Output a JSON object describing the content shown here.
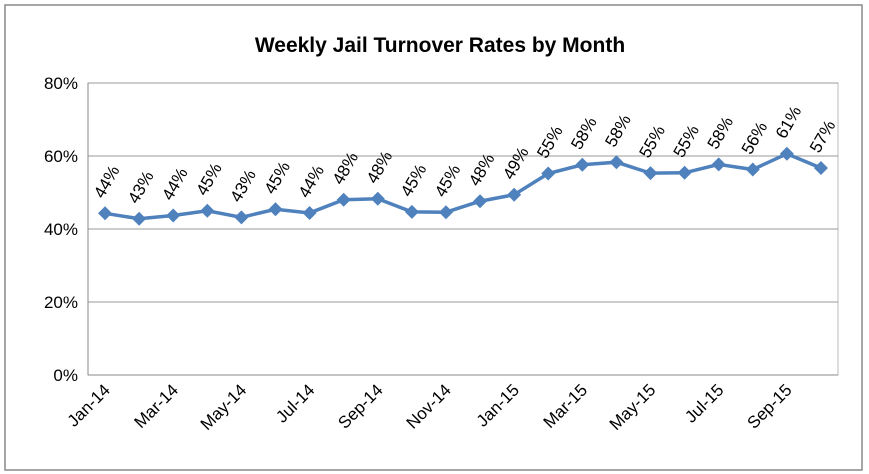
{
  "chart_data": {
    "type": "line",
    "title": "Weekly Jail Turnover Rates by Month",
    "categories": [
      "Jan-14",
      null,
      "Mar-14",
      null,
      "May-14",
      null,
      "Jul-14",
      null,
      "Sep-14",
      null,
      "Nov-14",
      null,
      "Jan-15",
      null,
      "Mar-15",
      null,
      "May-15",
      null,
      "Jul-15",
      null,
      "Sep-15",
      null
    ],
    "series": [
      {
        "name": "Turnover rate",
        "color": "#4f81bd",
        "values": [
          44.3,
          42.8,
          43.7,
          45.0,
          43.2,
          45.4,
          44.4,
          48.0,
          48.3,
          44.7,
          44.6,
          47.6,
          49.4,
          55.2,
          57.6,
          58.3,
          55.3,
          55.4,
          57.7,
          56.3,
          60.6,
          56.7
        ],
        "value_labels": [
          "44%",
          "43%",
          "44%",
          "45%",
          "43%",
          "45%",
          "44%",
          "48%",
          "48%",
          "45%",
          "45%",
          "48%",
          "49%",
          "55%",
          "58%",
          "58%",
          "55%",
          "55%",
          "58%",
          "56%",
          "61%",
          "57%"
        ]
      }
    ],
    "ylim": [
      0,
      80
    ],
    "yticks": [
      {
        "value": 0,
        "label": "0%"
      },
      {
        "value": 20,
        "label": "20%"
      },
      {
        "value": 40,
        "label": "40%"
      },
      {
        "value": 60,
        "label": "60%"
      },
      {
        "value": 80,
        "label": "80%"
      }
    ],
    "grid": true
  }
}
